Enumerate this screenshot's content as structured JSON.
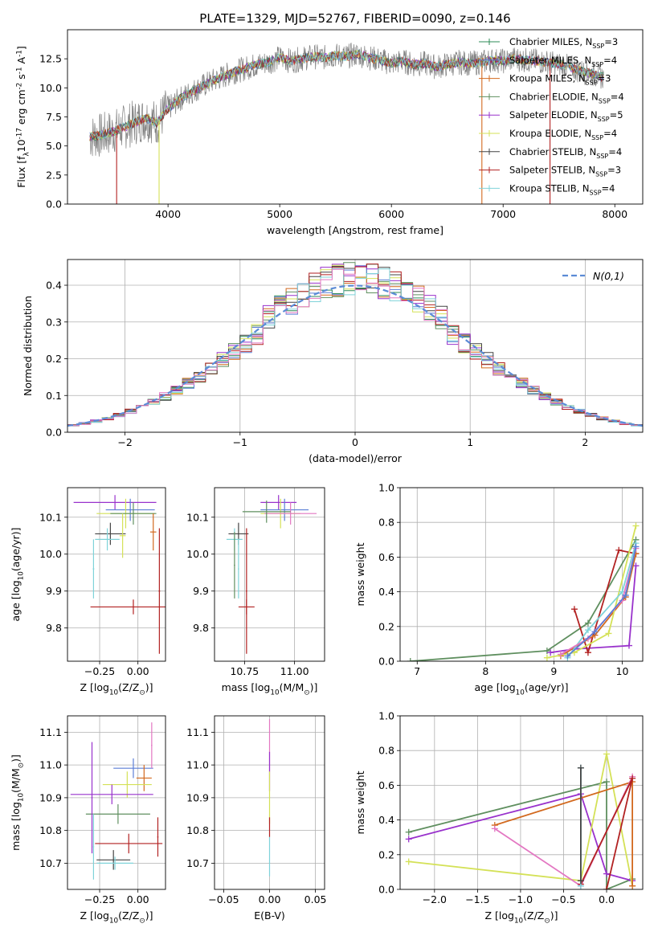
{
  "chart_data": [
    {
      "id": "spectrum",
      "type": "line",
      "title": "PLATE=1329, MJD=52767, FIBERID=0090, z=0.146",
      "xlabel": "wavelength [Angstrom, rest frame]",
      "ylabel": "Flux [f$_\\lambda$10$^{-17}$ erg cm$^{-2}$ s$^{-1}$ A$^{-1}$]",
      "xlim": [
        3100,
        8250
      ],
      "ylim": [
        0,
        15
      ],
      "xticks": [
        4000,
        5000,
        6000,
        7000,
        8000
      ],
      "yticks": [
        0.0,
        2.5,
        5.0,
        7.5,
        10.0,
        12.5
      ],
      "grid": false,
      "legend_position": "upper-right",
      "data_color": "#808080",
      "x": [
        3300,
        3400,
        3500,
        3600,
        3700,
        3800,
        3900,
        4000,
        4100,
        4200,
        4300,
        4400,
        4500,
        4600,
        4700,
        4800,
        4900,
        5000,
        5100,
        5200,
        5300,
        5400,
        5500,
        5600,
        5700,
        5800,
        5900,
        6000,
        6100,
        6200,
        6300,
        6400,
        6500,
        6600,
        6700,
        6800,
        6900,
        7000,
        7100,
        7200,
        7300,
        7400,
        7500,
        7600,
        7700,
        7800,
        7900
      ],
      "model_y": [
        5.8,
        5.9,
        6.2,
        6.6,
        7.0,
        7.4,
        7.0,
        8.2,
        9.0,
        9.6,
        10.1,
        10.6,
        11.0,
        11.4,
        11.7,
        12.0,
        12.2,
        12.6,
        12.3,
        12.5,
        12.7,
        12.6,
        12.8,
        12.7,
        12.9,
        12.6,
        12.4,
        12.1,
        12.3,
        12.0,
        12.1,
        11.8,
        12.0,
        12.2,
        12.1,
        12.2,
        12.4,
        12.3,
        12.5,
        12.4,
        12.3,
        12.2,
        12.0,
        11.8,
        11.4,
        11.2,
        10.9
      ],
      "series": [
        {
          "name": "Chabrier MILES, N$_{SSP}$=3",
          "color": "#2e8b57"
        },
        {
          "name": "Salpeter MILES, N$_{SSP}$=4",
          "color": "#5b7fd6"
        },
        {
          "name": "Kroupa MILES, N$_{SSP}$=3",
          "color": "#d2691e"
        },
        {
          "name": "Chabrier ELODIE, N$_{SSP}$=4",
          "color": "#5f8f5f"
        },
        {
          "name": "Salpeter ELODIE, N$_{SSP}$=5",
          "color": "#9932cc"
        },
        {
          "name": "Kroupa ELODIE, N$_{SSP}$=4",
          "color": "#d4e157"
        },
        {
          "name": "Chabrier STELIB, N$_{SSP}$=4",
          "color": "#444444"
        },
        {
          "name": "Salpeter STELIB, N$_{SSP}$=3",
          "color": "#b22222"
        },
        {
          "name": "Kroupa STELIB, N$_{SSP}$=4",
          "color": "#7fd3d9"
        }
      ]
    },
    {
      "id": "residuals",
      "type": "bar",
      "xlabel": "(data-model)/error",
      "ylabel": "Normed distribution",
      "xlim": [
        -2.5,
        2.5
      ],
      "ylim": [
        0,
        0.47
      ],
      "xticks": [
        -2,
        -1,
        0,
        1,
        2
      ],
      "yticks": [
        0.0,
        0.1,
        0.2,
        0.3,
        0.4
      ],
      "grid": true,
      "legend_position": "upper-right",
      "normal_label": "$\\mathcal{N}(0,1)$",
      "normal_color": "#5b8bd6",
      "bin_width": 0.1,
      "hist_colors": [
        "#2e8b57",
        "#5b7fd6",
        "#d2691e",
        "#5f8f5f",
        "#9932cc",
        "#d4e157",
        "#444444",
        "#b22222",
        "#7fd3d9",
        "#e377c2"
      ]
    },
    {
      "id": "age-z",
      "type": "scatter",
      "xlabel": "Z [log$_{10}$(Z/Z$_\\odot$)]",
      "ylabel": "age  [log$_{10}$(age/yr)]",
      "xlim": [
        -0.46,
        0.18
      ],
      "ylim": [
        9.71,
        10.18
      ],
      "xticks": [
        -0.25,
        0.0
      ],
      "yticks": [
        9.8,
        9.9,
        10.0,
        10.1
      ],
      "grid": true,
      "points": [
        {
          "x": -0.15,
          "y": 10.14,
          "xerr": 0.27,
          "yerr": 0.02,
          "color": "#9932cc"
        },
        {
          "x": -0.05,
          "y": 10.12,
          "xerr": 0.16,
          "yerr": 0.03,
          "color": "#5b7fd6"
        },
        {
          "x": -0.08,
          "y": 10.11,
          "xerr": 0.19,
          "yerr": 0.04,
          "color": "#d4e157"
        },
        {
          "x": -0.03,
          "y": 10.11,
          "xerr": 0.15,
          "yerr": 0.03,
          "color": "#5f8f5f"
        },
        {
          "x": -0.18,
          "y": 10.055,
          "xerr": 0.1,
          "yerr": 0.03,
          "color": "#444444"
        },
        {
          "x": -0.2,
          "y": 10.04,
          "xerr": 0.08,
          "yerr": 0.03,
          "color": "#7fd3d9"
        },
        {
          "x": -0.1,
          "y": 10.05,
          "xerr": 0.02,
          "yerr": 0.06,
          "color": "#d4e157"
        },
        {
          "x": 0.1,
          "y": 10.06,
          "xerr": 0.02,
          "yerr": 0.05,
          "color": "#d2691e"
        },
        {
          "x": -0.03,
          "y": 9.857,
          "xerr": 0.28,
          "yerr": 0.02,
          "color": "#b22222"
        },
        {
          "x": 0.14,
          "y": 9.9,
          "xerr": 0.005,
          "yerr": 0.17,
          "color": "#b22222"
        },
        {
          "x": -0.29,
          "y": 9.96,
          "xerr": 0.005,
          "yerr": 0.08,
          "color": "#7fd3d9"
        }
      ]
    },
    {
      "id": "age-mass",
      "type": "scatter",
      "xlabel": "mass [log$_{10}$(M/M$_\\odot$)]",
      "ylabel": "",
      "xlim": [
        10.6,
        11.15
      ],
      "ylim": [
        9.71,
        10.18
      ],
      "xticks": [
        10.75,
        11.0
      ],
      "yticks": [
        9.8,
        9.9,
        10.0,
        10.1
      ],
      "grid": true,
      "points": [
        {
          "x": 10.92,
          "y": 10.14,
          "xerr": 0.09,
          "yerr": 0.02,
          "color": "#9932cc"
        },
        {
          "x": 10.95,
          "y": 10.12,
          "xerr": 0.12,
          "yerr": 0.03,
          "color": "#5b7fd6"
        },
        {
          "x": 10.93,
          "y": 10.11,
          "xerr": 0.1,
          "yerr": 0.04,
          "color": "#d4e157"
        },
        {
          "x": 10.98,
          "y": 10.11,
          "xerr": 0.13,
          "yerr": 0.03,
          "color": "#e377c2"
        },
        {
          "x": 10.86,
          "y": 10.115,
          "xerr": 0.12,
          "yerr": 0.03,
          "color": "#5f8f5f"
        },
        {
          "x": 10.72,
          "y": 10.055,
          "xerr": 0.05,
          "yerr": 0.03,
          "color": "#444444"
        },
        {
          "x": 10.7,
          "y": 10.04,
          "xerr": 0.04,
          "yerr": 0.03,
          "color": "#7fd3d9"
        },
        {
          "x": 10.76,
          "y": 9.857,
          "xerr": 0.04,
          "yerr": 0.02,
          "color": "#b22222"
        },
        {
          "x": 10.76,
          "y": 9.9,
          "xerr": 0.003,
          "yerr": 0.17,
          "color": "#b22222"
        },
        {
          "x": 10.7,
          "y": 9.97,
          "xerr": 0.003,
          "yerr": 0.09,
          "color": "#5f8f5f"
        },
        {
          "x": 10.72,
          "y": 9.96,
          "xerr": 0.003,
          "yerr": 0.08,
          "color": "#7fd3d9"
        }
      ]
    },
    {
      "id": "weight-age",
      "type": "line",
      "xlabel": "age  [log$_{10}$(age/yr)]",
      "ylabel": "mass weight",
      "xlim": [
        6.75,
        10.3
      ],
      "ylim": [
        0,
        1
      ],
      "xticks": [
        7,
        8,
        9,
        10
      ],
      "yticks": [
        0.0,
        0.2,
        0.4,
        0.6,
        0.8,
        1.0
      ],
      "grid": true,
      "series": [
        {
          "color": "#5f8f5f",
          "x": [
            6.9,
            8.9,
            9.5,
            10.2
          ],
          "y": [
            0.0,
            0.06,
            0.22,
            0.7
          ]
        },
        {
          "color": "#9932cc",
          "x": [
            8.95,
            9.3,
            10.1,
            10.2
          ],
          "y": [
            0.05,
            0.07,
            0.09,
            0.55
          ]
        },
        {
          "color": "#b22222",
          "x": [
            9.3,
            9.5,
            9.95,
            10.2
          ],
          "y": [
            0.3,
            0.05,
            0.64,
            0.62
          ]
        },
        {
          "color": "#d2691e",
          "x": [
            9.1,
            9.6,
            10.05,
            10.2
          ],
          "y": [
            0.03,
            0.15,
            0.37,
            0.62
          ]
        },
        {
          "color": "#d4e157",
          "x": [
            8.9,
            9.3,
            9.8,
            10.2
          ],
          "y": [
            0.02,
            0.05,
            0.16,
            0.78
          ]
        },
        {
          "color": "#7fd3d9",
          "x": [
            9.2,
            9.5,
            10.0,
            10.2
          ],
          "y": [
            0.02,
            0.18,
            0.4,
            0.68
          ]
        },
        {
          "color": "#e377c2",
          "x": [
            9.1,
            9.5,
            10.0,
            10.2
          ],
          "y": [
            0.04,
            0.13,
            0.35,
            0.65
          ]
        },
        {
          "color": "#5b7fd6",
          "x": [
            9.2,
            9.6,
            10.05,
            10.2
          ],
          "y": [
            0.03,
            0.17,
            0.38,
            0.66
          ]
        }
      ]
    },
    {
      "id": "mass-z",
      "type": "scatter",
      "xlabel": "Z [log$_{10}$(Z/Z$_\\odot$)]",
      "ylabel": "mass [log$_{10}$(M/M$_\\odot$)]",
      "xlim": [
        -0.46,
        0.18
      ],
      "ylim": [
        10.62,
        11.15
      ],
      "xticks": [
        -0.25,
        0.0
      ],
      "yticks": [
        10.7,
        10.8,
        10.9,
        11.0,
        11.1
      ],
      "grid": true,
      "points": [
        {
          "x": -0.03,
          "y": 10.99,
          "xerr": 0.13,
          "yerr": 0.03,
          "color": "#5b7fd6"
        },
        {
          "x": 0.04,
          "y": 10.96,
          "xerr": 0.05,
          "yerr": 0.04,
          "color": "#d2691e"
        },
        {
          "x": -0.07,
          "y": 10.94,
          "xerr": 0.16,
          "yerr": 0.04,
          "color": "#d4e157"
        },
        {
          "x": -0.17,
          "y": 10.91,
          "xerr": 0.27,
          "yerr": 0.03,
          "color": "#9932cc"
        },
        {
          "x": -0.13,
          "y": 10.85,
          "xerr": 0.21,
          "yerr": 0.03,
          "color": "#5f8f5f"
        },
        {
          "x": -0.06,
          "y": 10.76,
          "xerr": 0.22,
          "yerr": 0.03,
          "color": "#b22222"
        },
        {
          "x": -0.16,
          "y": 10.71,
          "xerr": 0.11,
          "yerr": 0.03,
          "color": "#444444"
        },
        {
          "x": -0.15,
          "y": 10.7,
          "xerr": 0.12,
          "yerr": 0.02,
          "color": "#7fd3d9"
        },
        {
          "x": 0.09,
          "y": 11.06,
          "xerr": 0.004,
          "yerr": 0.07,
          "color": "#e377c2"
        },
        {
          "x": 0.13,
          "y": 10.78,
          "xerr": 0.004,
          "yerr": 0.06,
          "color": "#b22222"
        },
        {
          "x": -0.29,
          "y": 10.75,
          "xerr": 0.004,
          "yerr": 0.1,
          "color": "#7fd3d9"
        },
        {
          "x": -0.3,
          "y": 10.9,
          "xerr": 0.004,
          "yerr": 0.17,
          "color": "#9932cc"
        }
      ]
    },
    {
      "id": "mass-ebv",
      "type": "scatter",
      "xlabel": "E(B-V)",
      "ylabel": "",
      "xlim": [
        -0.06,
        0.06
      ],
      "ylim": [
        10.62,
        11.15
      ],
      "xticks": [
        -0.05,
        0.0,
        0.05
      ],
      "yticks": [
        10.7,
        10.8,
        10.9,
        11.0,
        11.1
      ],
      "grid": true,
      "points": [
        {
          "x": 0.0,
          "y": 11.06,
          "xerr": 0,
          "yerr": 0.08,
          "color": "#e377c2"
        },
        {
          "x": 0.0,
          "y": 10.98,
          "xerr": 0,
          "yerr": 0.06,
          "color": "#9932cc"
        },
        {
          "x": 0.0,
          "y": 10.9,
          "xerr": 0,
          "yerr": 0.08,
          "color": "#d4e157"
        },
        {
          "x": 0.0,
          "y": 10.81,
          "xerr": 0,
          "yerr": 0.03,
          "color": "#b22222"
        },
        {
          "x": 0.0,
          "y": 10.72,
          "xerr": 0,
          "yerr": 0.06,
          "color": "#7fd3d9"
        }
      ]
    },
    {
      "id": "weight-z",
      "type": "line",
      "xlabel": "Z [log$_{10}$(Z/Z$_\\odot$)]",
      "ylabel": "mass weight",
      "xlim": [
        -2.4,
        0.42
      ],
      "ylim": [
        0,
        1
      ],
      "xticks": [
        -2.0,
        -1.5,
        -1.0,
        -0.5,
        0.0
      ],
      "yticks": [
        0.0,
        0.2,
        0.4,
        0.6,
        0.8,
        1.0
      ],
      "grid": true,
      "series": [
        {
          "color": "#5f8f5f",
          "x": [
            -2.3,
            0.0,
            0.0,
            0.3
          ],
          "y": [
            0.33,
            0.62,
            0.0,
            0.06
          ]
        },
        {
          "color": "#9932cc",
          "x": [
            -2.3,
            -0.3,
            0.0,
            0.3
          ],
          "y": [
            0.29,
            0.55,
            0.09,
            0.05
          ]
        },
        {
          "color": "#d4e157",
          "x": [
            -2.3,
            -0.3,
            0.0,
            0.3
          ],
          "y": [
            0.16,
            0.05,
            0.78,
            0.02
          ]
        },
        {
          "color": "#d2691e",
          "x": [
            -1.3,
            0.3,
            0.3
          ],
          "y": [
            0.37,
            0.62,
            0.02
          ]
        },
        {
          "color": "#e377c2",
          "x": [
            -1.3,
            -0.3,
            0.3
          ],
          "y": [
            0.35,
            0.02,
            0.65
          ]
        },
        {
          "color": "#b22222",
          "x": [
            -0.3,
            0.3,
            0.0
          ],
          "y": [
            0.03,
            0.64,
            0.0
          ]
        },
        {
          "color": "#7fd3d9",
          "x": [
            -0.3,
            -0.3
          ],
          "y": [
            0.02,
            0.7
          ]
        },
        {
          "color": "#444444",
          "x": [
            -0.3,
            -0.3
          ],
          "y": [
            0.05,
            0.7
          ]
        }
      ]
    }
  ]
}
